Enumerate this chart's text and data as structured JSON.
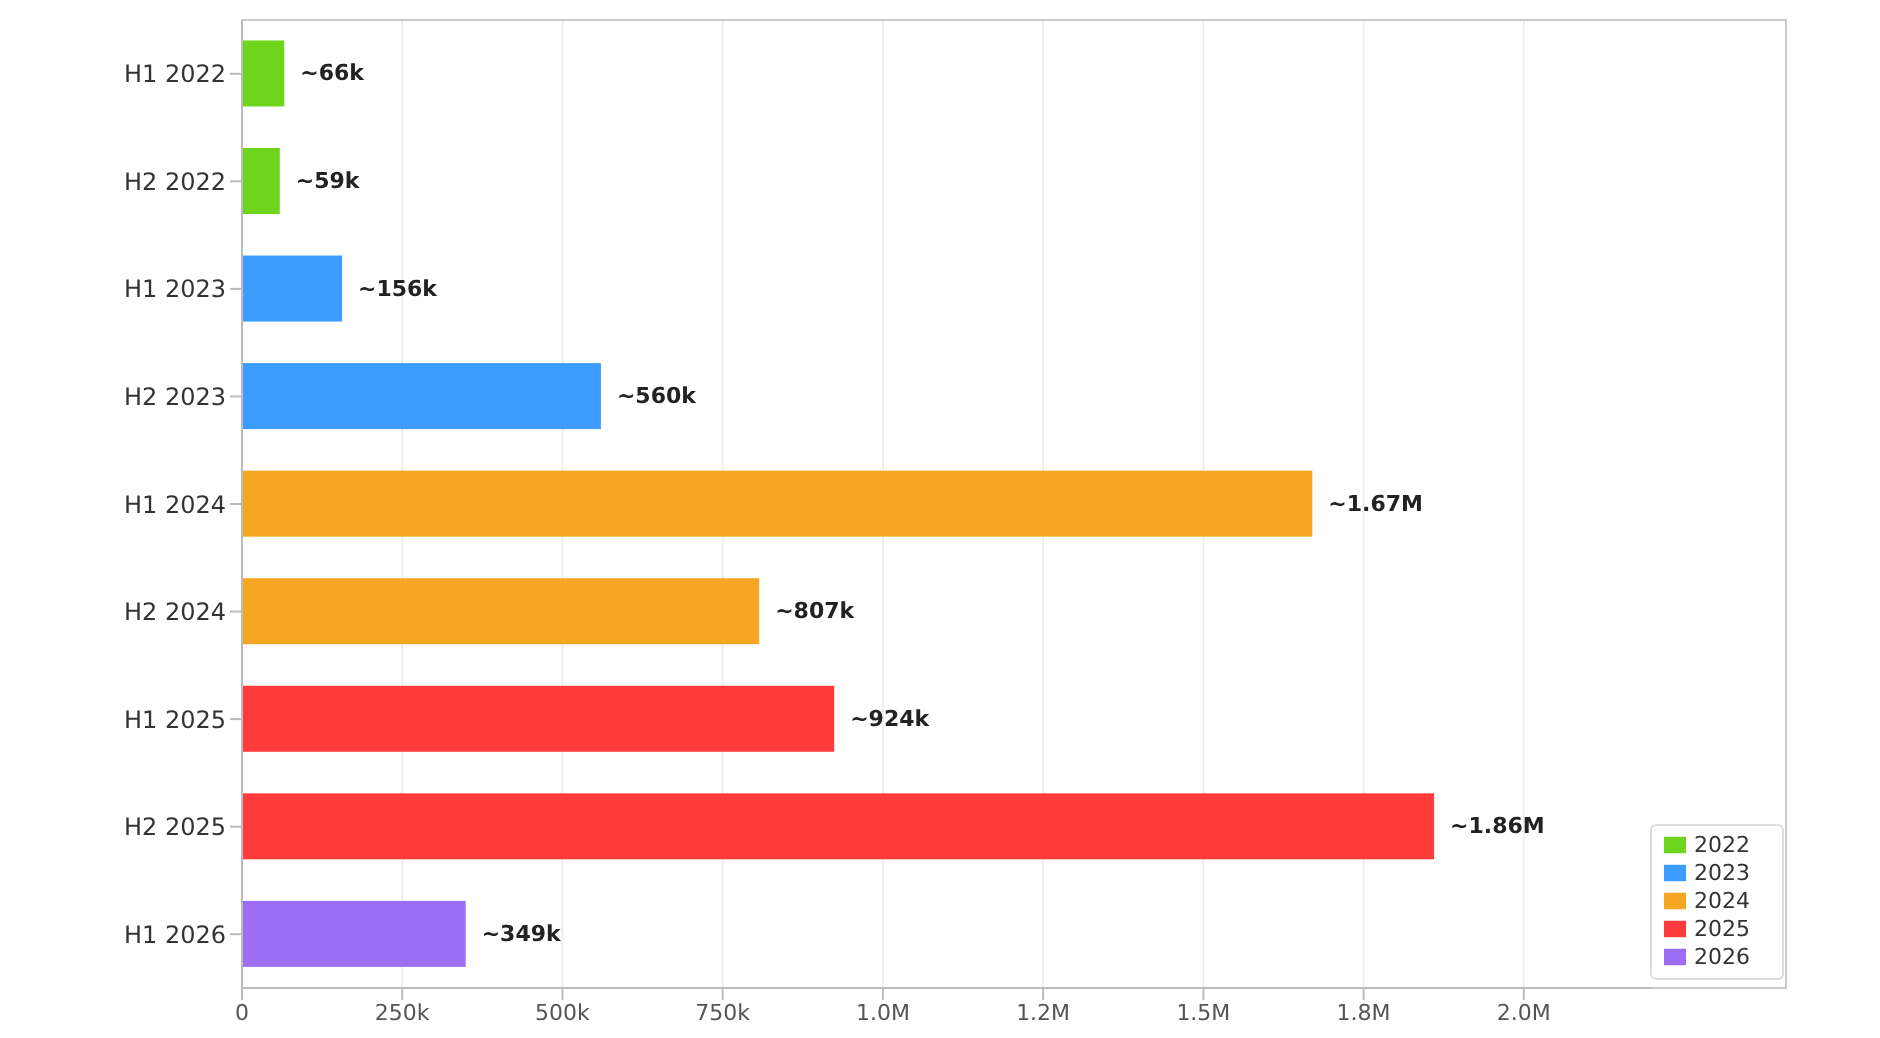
{
  "chart_data": {
    "type": "bar",
    "orientation": "horizontal",
    "stacked": true,
    "categories": [
      "H1 2022",
      "H2 2022",
      "H1 2023",
      "H2 2023",
      "H1 2024",
      "H2 2024",
      "H1 2025",
      "H2 2025",
      "H1 2026"
    ],
    "series": [
      {
        "name": "2022",
        "color": "#6fd41c",
        "values": [
          66000,
          59000,
          null,
          null,
          null,
          null,
          null,
          null,
          null
        ]
      },
      {
        "name": "2023",
        "color": "#3d9cff",
        "values": [
          null,
          null,
          156000,
          560000,
          null,
          null,
          null,
          null,
          null
        ]
      },
      {
        "name": "2024",
        "color": "#f5a623",
        "values": [
          null,
          null,
          null,
          null,
          1670000,
          807000,
          null,
          null,
          null
        ]
      },
      {
        "name": "2025",
        "color": "#ff3b3b",
        "values": [
          null,
          null,
          null,
          null,
          null,
          null,
          924000,
          1860000,
          null
        ]
      },
      {
        "name": "2026",
        "color": "#9b6ef3",
        "values": [
          null,
          null,
          null,
          null,
          null,
          null,
          null,
          null,
          349000
        ]
      }
    ],
    "value_labels": [
      "~66k",
      "~59k",
      "~156k",
      "~560k",
      "~1.67M",
      "~807k",
      "~924k",
      "~1.86M",
      "~349k"
    ],
    "xlim": [
      0,
      2200000
    ],
    "xticks": [
      0,
      {
        "value": 250000,
        "label": "250k"
      },
      {
        "value": 500000,
        "label": "500k"
      },
      {
        "value": 750000,
        "label": "750k"
      },
      {
        "value": 1000000,
        "label": "1.0M"
      },
      {
        "value": 1250000,
        "label": "1.2M"
      },
      {
        "value": 1500000,
        "label": "1.5M"
      },
      {
        "value": 1750000,
        "label": "1.8M"
      },
      {
        "value": 2000000,
        "label": "2.0M"
      }
    ],
    "grid": "x",
    "legend": "bottom right"
  }
}
